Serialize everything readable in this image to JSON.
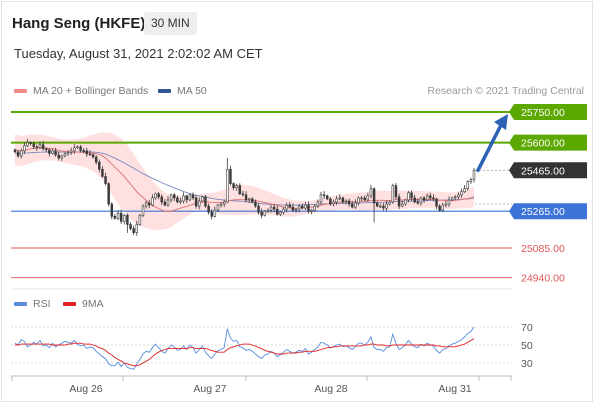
{
  "header": {
    "title": "Hang Seng (HKFE)",
    "timeframe": "30 MIN",
    "datetime": "Tuesday, August 31, 2021 2:02:02 AM CET",
    "copyright": "Research © 2021 Trading Central"
  },
  "legend_main": [
    {
      "label": "MA 20 + Bollinger Bands",
      "color": "#f08a8a"
    },
    {
      "label": "MA 50",
      "color": "#2f5597"
    }
  ],
  "legend_rsi": [
    {
      "label": "RSI",
      "color": "#5b8de0"
    },
    {
      "label": "9MA",
      "color": "#e02020"
    }
  ],
  "colors": {
    "target": "#5aa800",
    "pivot": "#3b73d9",
    "support": "#e05555",
    "current": "#333333",
    "arrow": "#2b62b3",
    "candle": "#3a3a3a",
    "band_fill": "#fde0df",
    "ma20": "#e07070",
    "ma50": "#7c8bc2"
  },
  "chart_data": [
    {
      "type": "candlestick",
      "title": "Hang Seng (HKFE)",
      "x_ticks": [
        "Aug 26",
        "Aug 27",
        "Aug 28",
        "Aug 31"
      ],
      "price_levels": [
        {
          "value": 25750,
          "label": "25750.00",
          "kind": "target"
        },
        {
          "value": 25600,
          "label": "25600.00",
          "kind": "target"
        },
        {
          "value": 25465,
          "label": "25465.00",
          "kind": "current"
        },
        {
          "value": 25265,
          "label": "25265.00",
          "kind": "pivot"
        },
        {
          "value": 25085,
          "label": "25085.00",
          "kind": "support"
        },
        {
          "value": 24940,
          "label": "24940.00",
          "kind": "support"
        }
      ],
      "ylim": [
        24900,
        25900
      ],
      "close": [
        25555,
        25535,
        25560,
        25585,
        25600,
        25595,
        25580,
        25575,
        25590,
        25570,
        25565,
        25548,
        25560,
        25540,
        25525,
        25535,
        25545,
        25552,
        25560,
        25575,
        25580,
        25562,
        25560,
        25545,
        25542,
        25530,
        25505,
        25470,
        25435,
        25400,
        25300,
        25240,
        25230,
        25255,
        25215,
        25245,
        25200,
        25180,
        25160,
        25200,
        25245,
        25290,
        25305,
        25295,
        25330,
        25350,
        25335,
        25310,
        25295,
        25320,
        25345,
        25330,
        25310,
        25315,
        25340,
        25320,
        25345,
        25330,
        25290,
        25315,
        25335,
        25290,
        25260,
        25240,
        25270,
        25295,
        25300,
        25310,
        25470,
        25400,
        25380,
        25390,
        25350,
        25345,
        25320,
        25325,
        25310,
        25290,
        25260,
        25245,
        25265,
        25270,
        25285,
        25275,
        25250,
        25260,
        25275,
        25295,
        25285,
        25270,
        25275,
        25290,
        25280,
        25295,
        25265,
        25270,
        25290,
        25310,
        25345,
        25340,
        25325,
        25300,
        25310,
        25325,
        25330,
        25310,
        25315,
        25300,
        25285,
        25305,
        25330,
        25330,
        25320,
        25340,
        25375,
        25305,
        25290,
        25290,
        25280,
        25300,
        25310,
        25390,
        25335,
        25290,
        25300,
        25320,
        25355,
        25330,
        25310,
        25305,
        25330,
        25320,
        25340,
        25330,
        25325,
        25290,
        25270,
        25295,
        25300,
        25320,
        25330,
        25335,
        25345,
        25360,
        25375,
        25410,
        25420,
        25465
      ],
      "ma20": [
        25565,
        25562,
        25560,
        25562,
        25566,
        25570,
        25572,
        25574,
        25575,
        25576,
        25575,
        25572,
        25570,
        25567,
        25563,
        25560,
        25558,
        25556,
        25555,
        25554,
        25554,
        25553,
        25553,
        25552,
        25551,
        25549,
        25546,
        25542,
        25535,
        25525,
        25510,
        25495,
        25480,
        25466,
        25450,
        25434,
        25416,
        25397,
        25378,
        25360,
        25345,
        25332,
        25318,
        25305,
        25295,
        25285,
        25278,
        25271,
        25266,
        25264,
        25266,
        25270,
        25275,
        25280,
        25284,
        25289,
        25294,
        25299,
        25302,
        25306,
        25309,
        25310,
        25310,
        25308,
        25307,
        25307,
        25307,
        25308,
        25315,
        25318,
        25320,
        25321,
        25321,
        25321,
        25320,
        25320,
        25319,
        25317,
        25314,
        25310,
        25307,
        25304,
        25300,
        25297,
        25293,
        25289,
        25285,
        25282,
        25280,
        25279,
        25279,
        25280,
        25281,
        25283,
        25284,
        25285,
        25287,
        25290,
        25294,
        25297,
        25300,
        25302,
        25304,
        25307,
        25309,
        25310,
        25311,
        25311,
        25311,
        25311,
        25312,
        25313,
        25314,
        25315,
        25318,
        25318,
        25318,
        25318,
        25318,
        25317,
        25317,
        25320,
        25321,
        25321,
        25320,
        25320,
        25321,
        25322,
        25322,
        25322,
        25322,
        25322,
        25322,
        25322,
        25322,
        25320,
        25319,
        25318,
        25317,
        25317,
        25317,
        25318,
        25320,
        25322,
        25324,
        25327,
        25330,
        25336
      ],
      "ma50": [
        25545,
        25546,
        25547,
        25549,
        25550,
        25551,
        25552,
        25553,
        25553,
        25554,
        25554,
        25554,
        25554,
        25554,
        25554,
        25554,
        25554,
        25554,
        25554,
        25554,
        25555,
        25555,
        25555,
        25555,
        25555,
        25554,
        25553,
        25551,
        25548,
        25544,
        25538,
        25531,
        25524,
        25517,
        25509,
        25501,
        25493,
        25484,
        25475,
        25466,
        25457,
        25449,
        25441,
        25433,
        25426,
        25419,
        25412,
        25405,
        25398,
        25391,
        25385,
        25379,
        25373,
        25367,
        25361,
        25356,
        25351,
        25347,
        25343,
        25340,
        25337,
        25334,
        25331,
        25328,
        25325,
        25323,
        25321,
        25319,
        25318,
        25317,
        25316,
        25315,
        25314,
        25313,
        25311,
        25309,
        25307,
        25305,
        25303,
        25301,
        25300,
        25299,
        25298,
        25297,
        25296,
        25296,
        25295,
        25295,
        25295,
        25295,
        25295,
        25295,
        25296,
        25296,
        25297,
        25297,
        25298,
        25299,
        25300,
        25300,
        25301,
        25302,
        25302,
        25303,
        25303,
        25303,
        25304,
        25304,
        25304,
        25305,
        25305,
        25306,
        25306,
        25307,
        25307,
        25308,
        25308,
        25308,
        25309,
        25309,
        25310,
        25311,
        25312,
        25312,
        25313,
        25313,
        25314,
        25314,
        25315,
        25315,
        25316,
        25316,
        25317,
        25317,
        25318,
        25318,
        25318,
        25319,
        25319,
        25320,
        25320,
        25321,
        25322,
        25323,
        25324,
        25325,
        25327,
        25329
      ],
      "bb_width": [
        75,
        75,
        74,
        73,
        72,
        70,
        68,
        66,
        64,
        62,
        60,
        58,
        57,
        56,
        56,
        56,
        57,
        58,
        60,
        62,
        64,
        68,
        72,
        78,
        84,
        90,
        98,
        106,
        115,
        125,
        140,
        150,
        158,
        165,
        170,
        172,
        172,
        170,
        166,
        160,
        152,
        144,
        136,
        128,
        120,
        112,
        104,
        97,
        90,
        84,
        78,
        72,
        66,
        60,
        55,
        50,
        46,
        42,
        40,
        40,
        41,
        42,
        44,
        46,
        50,
        54,
        58,
        62,
        68,
        72,
        74,
        75,
        75,
        74,
        73,
        71,
        69,
        67,
        65,
        62,
        60,
        58,
        55,
        52,
        50,
        48,
        46,
        44,
        42,
        40,
        38,
        36,
        34,
        32,
        31,
        30,
        30,
        30,
        31,
        32,
        33,
        34,
        35,
        36,
        37,
        38,
        39,
        40,
        41,
        42,
        43,
        44,
        45,
        46,
        47,
        48,
        48,
        48,
        48,
        47,
        46,
        46,
        45,
        45,
        44,
        44,
        43,
        43,
        42,
        42,
        41,
        41,
        40,
        40,
        40,
        40,
        40,
        40,
        40,
        40,
        40,
        41,
        42,
        43,
        44,
        46,
        48,
        50
      ]
    },
    {
      "type": "line",
      "title": "RSI",
      "y_ticks": [
        "70",
        "50",
        "30"
      ],
      "ylim": [
        20,
        80
      ],
      "rsi": [
        52,
        50,
        56,
        54,
        48,
        50,
        53,
        51,
        55,
        49,
        50,
        47,
        52,
        48,
        50,
        52,
        54,
        53,
        52,
        55,
        51,
        49,
        50,
        46,
        48,
        47,
        43,
        40,
        37,
        35,
        29,
        27,
        27,
        31,
        26,
        30,
        25,
        24,
        23,
        29,
        34,
        40,
        43,
        42,
        47,
        51,
        47,
        43,
        41,
        46,
        50,
        48,
        44,
        45,
        49,
        45,
        50,
        47,
        41,
        45,
        49,
        42,
        38,
        35,
        40,
        44,
        45,
        47,
        68,
        58,
        54,
        55,
        48,
        47,
        44,
        45,
        43,
        40,
        37,
        35,
        39,
        40,
        43,
        41,
        37,
        39,
        42,
        45,
        43,
        41,
        42,
        44,
        43,
        46,
        40,
        42,
        45,
        48,
        53,
        52,
        50,
        47,
        48,
        50,
        51,
        48,
        49,
        47,
        45,
        48,
        52,
        52,
        50,
        53,
        59,
        47,
        45,
        45,
        43,
        47,
        48,
        62,
        52,
        45,
        47,
        50,
        55,
        51,
        48,
        47,
        51,
        49,
        52,
        50,
        49,
        44,
        41,
        45,
        46,
        49,
        51,
        52,
        54,
        56,
        59,
        63,
        65,
        70
      ],
      "ma9": [
        50,
        50,
        51,
        51,
        51,
        51,
        51,
        51,
        51,
        51,
        51,
        51,
        50,
        50,
        50,
        50,
        50,
        51,
        51,
        52,
        52,
        52,
        51,
        51,
        51,
        50,
        49,
        47,
        46,
        44,
        41,
        39,
        36,
        34,
        32,
        30,
        29,
        28,
        27,
        27,
        28,
        30,
        32,
        34,
        37,
        40,
        42,
        44,
        45,
        46,
        46,
        46,
        46,
        46,
        46,
        46,
        47,
        47,
        46,
        46,
        46,
        46,
        45,
        44,
        43,
        42,
        42,
        42,
        45,
        47,
        48,
        49,
        50,
        51,
        51,
        51,
        50,
        49,
        47,
        46,
        44,
        43,
        42,
        41,
        40,
        40,
        40,
        41,
        41,
        41,
        41,
        42,
        42,
        43,
        43,
        43,
        43,
        44,
        45,
        46,
        47,
        47,
        48,
        48,
        49,
        49,
        49,
        49,
        49,
        49,
        49,
        49,
        50,
        50,
        51,
        51,
        50,
        50,
        50,
        49,
        49,
        50,
        50,
        50,
        50,
        50,
        50,
        50,
        50,
        50,
        50,
        50,
        50,
        50,
        50,
        49,
        49,
        48,
        48,
        48,
        48,
        48,
        49,
        50,
        51,
        53,
        55,
        57
      ]
    }
  ]
}
